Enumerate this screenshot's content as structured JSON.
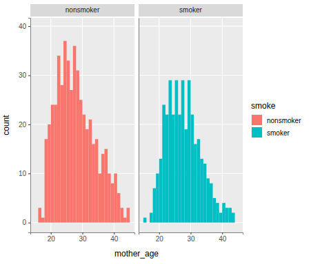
{
  "chart_data": {
    "type": "histogram",
    "xlabel": "mother_age",
    "ylabel": "count",
    "legend_title": "smoke",
    "bins": [
      15,
      16,
      17,
      18,
      19,
      20,
      21,
      22,
      23,
      24,
      25,
      26,
      27,
      28,
      29,
      30,
      31,
      32,
      33,
      34,
      35,
      36,
      37,
      38,
      39,
      40,
      41,
      42,
      43,
      44,
      45
    ],
    "series": [
      {
        "name": "nonsmoker",
        "color": "#F8766D",
        "values": [
          0,
          3,
          1,
          17,
          20,
          24,
          24,
          34,
          28,
          37,
          33,
          27,
          36,
          31,
          25,
          22,
          19,
          21,
          16,
          17,
          10,
          14,
          15,
          10,
          8,
          10,
          6,
          3,
          1,
          3
        ]
      },
      {
        "name": "smoker",
        "color": "#00BFC4",
        "values": [
          1,
          0,
          2,
          7,
          10,
          13,
          24,
          22,
          29,
          22,
          29,
          22,
          29,
          19,
          29,
          22,
          16,
          17,
          13,
          12,
          9,
          8,
          5,
          4,
          2,
          4,
          3,
          3,
          2,
          0
        ]
      }
    ],
    "xlim": [
      13.5,
      46.5
    ],
    "xticks": [
      20,
      30,
      40
    ],
    "ylim": [
      -2,
      41.7
    ],
    "yticks": [
      0,
      10,
      20,
      30,
      40
    ],
    "grid": true,
    "legend": "right"
  }
}
